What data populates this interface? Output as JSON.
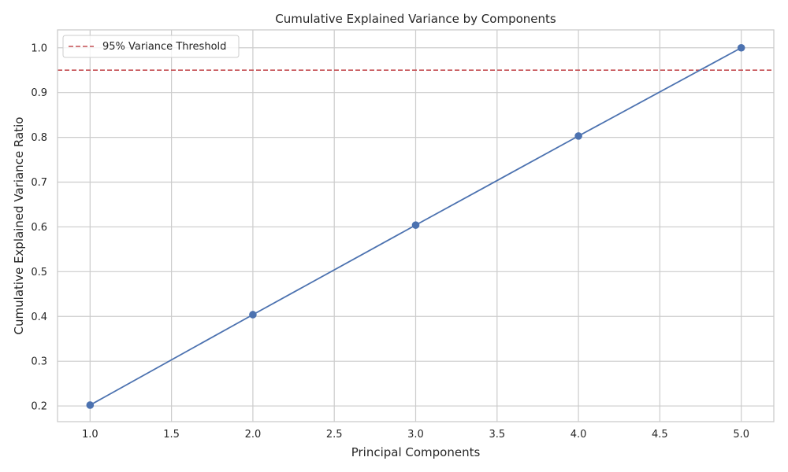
{
  "chart_data": {
    "type": "line",
    "title": "Cumulative Explained Variance by Components",
    "xlabel": "Principal Components",
    "ylabel": "Cumulative Explained Variance Ratio",
    "xlim": [
      0.8,
      5.2
    ],
    "ylim": [
      0.165,
      1.04
    ],
    "xticks": [
      1.0,
      1.5,
      2.0,
      2.5,
      3.0,
      3.5,
      4.0,
      4.5,
      5.0
    ],
    "yticks": [
      0.2,
      0.3,
      0.4,
      0.5,
      0.6,
      0.7,
      0.8,
      0.9,
      1.0
    ],
    "grid": true,
    "legend_position": "top-left",
    "series": [
      {
        "x": [
          1,
          2,
          3,
          4,
          5
        ],
        "values": [
          0.202,
          0.404,
          0.604,
          0.803,
          1.0
        ],
        "color": "#4c72b0",
        "marker": "circle"
      }
    ],
    "threshold": {
      "name": "95% Variance Threshold",
      "value": 0.95,
      "color": "#c44e52",
      "style": "dashed"
    }
  }
}
